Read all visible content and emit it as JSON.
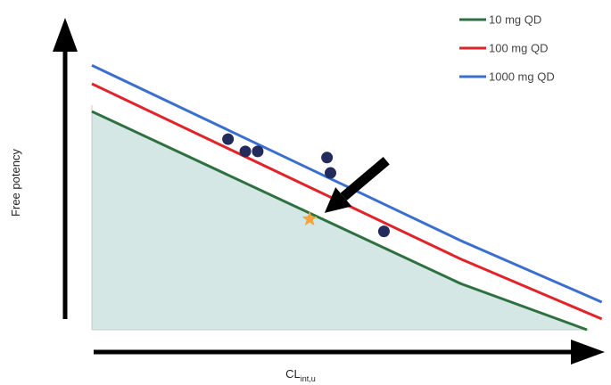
{
  "chart_data": {
    "type": "line",
    "title": "",
    "xlabel": {
      "main": "CL",
      "subscript": "int,u"
    },
    "ylabel": "Free potency",
    "xlim": [
      0,
      1
    ],
    "ylim": [
      0,
      1
    ],
    "ticks": "none",
    "grid": false,
    "legend": "top-right",
    "colors": {
      "10 mg QD": "#2e7040",
      "100 mg QD": "#e0242a",
      "1000 mg QD": "#3a6fd0",
      "shaded": "#d4e7e4",
      "points": "#232a5c",
      "star": "#f5a33a",
      "arrow": "#000000"
    },
    "series": [
      {
        "name": "10 mg QD",
        "color": "#2e7040",
        "x": [
          0,
          0.745,
          1.0
        ],
        "y": [
          0.71,
          0.15,
          0
        ]
      },
      {
        "name": "100 mg QD",
        "color": "#e0242a",
        "x": [
          0,
          0.745,
          1.03
        ],
        "y": [
          0.8,
          0.23,
          0.035
        ]
      },
      {
        "name": "1000 mg QD",
        "color": "#3a6fd0",
        "x": [
          0,
          0.745,
          1.03
        ],
        "y": [
          0.86,
          0.29,
          0.09
        ]
      }
    ],
    "shaded_region": {
      "below_series": "10 mg QD"
    },
    "points": [
      {
        "x": 0.275,
        "y": 0.62
      },
      {
        "x": 0.31,
        "y": 0.58
      },
      {
        "x": 0.335,
        "y": 0.58
      },
      {
        "x": 0.475,
        "y": 0.56
      },
      {
        "x": 0.482,
        "y": 0.51
      },
      {
        "x": 0.59,
        "y": 0.32
      }
    ],
    "highlight": {
      "x": 0.44,
      "y": 0.36,
      "marker": "star"
    },
    "annotation_arrow": {
      "from": [
        0.595,
        0.55
      ],
      "to": [
        0.47,
        0.38
      ]
    }
  }
}
